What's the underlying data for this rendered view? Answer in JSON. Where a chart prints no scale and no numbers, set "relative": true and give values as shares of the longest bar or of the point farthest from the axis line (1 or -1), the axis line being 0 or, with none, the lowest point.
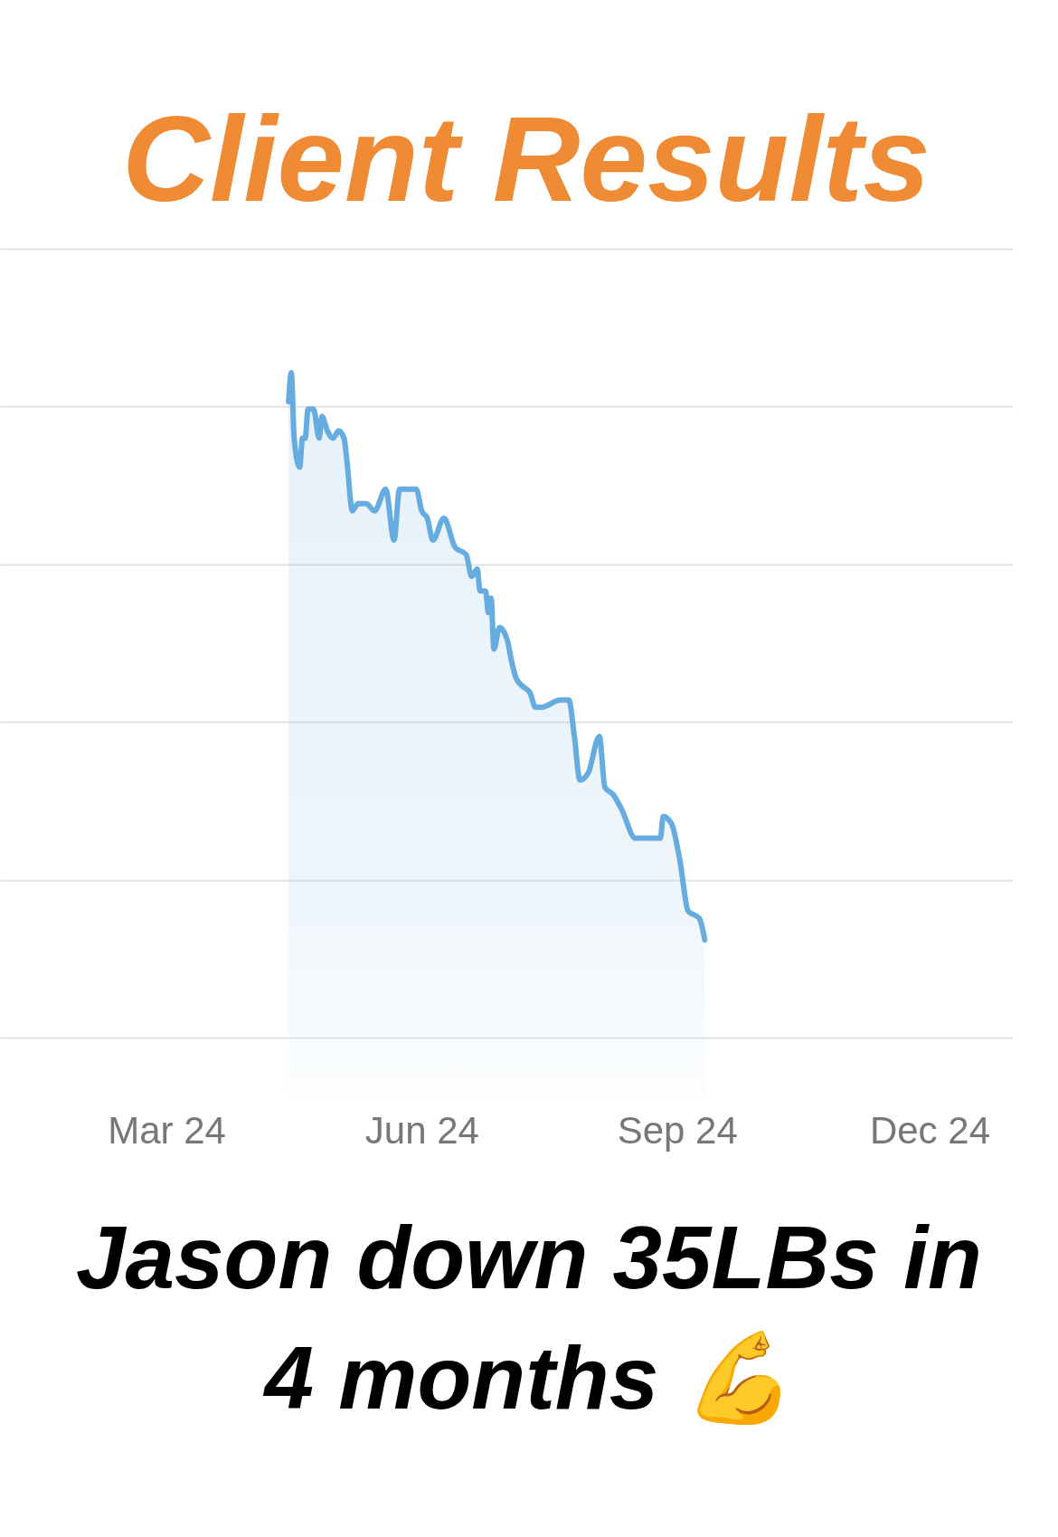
{
  "chart_data": {
    "type": "area",
    "relative": true,
    "title": "Client Results",
    "annotations": [
      "Jason down 35LBs in 4 months 💪"
    ],
    "x": [
      "2024-04-14",
      "2024-04-15",
      "2024-04-16",
      "2024-04-18",
      "2024-04-19",
      "2024-04-20",
      "2024-04-21",
      "2024-04-23",
      "2024-04-25",
      "2024-04-26",
      "2024-04-28",
      "2024-04-30",
      "2024-05-02",
      "2024-05-04",
      "2024-05-05",
      "2024-05-07",
      "2024-05-09",
      "2024-05-12",
      "2024-05-15",
      "2024-05-19",
      "2024-05-22",
      "2024-05-24",
      "2024-05-30",
      "2024-06-01",
      "2024-06-03",
      "2024-06-05",
      "2024-06-09",
      "2024-06-13",
      "2024-06-17",
      "2024-06-19",
      "2024-06-21",
      "2024-06-22",
      "2024-06-24",
      "2024-06-25",
      "2024-06-26",
      "2024-06-27",
      "2024-06-29",
      "2024-07-02",
      "2024-07-03",
      "2024-07-05",
      "2024-07-07",
      "2024-07-10",
      "2024-07-12",
      "2024-07-14",
      "2024-07-21",
      "2024-07-24",
      "2024-07-26",
      "2024-07-28",
      "2024-07-31",
      "2024-08-04",
      "2024-08-06",
      "2024-08-09",
      "2024-08-12",
      "2024-08-17",
      "2024-08-26",
      "2024-08-27",
      "2024-08-30",
      "2024-09-02",
      "2024-09-05",
      "2024-09-09",
      "2024-09-11"
    ],
    "series": [
      {
        "color": "#67ace0",
        "values": [
          0.96,
          1.0,
          0.91,
          0.87,
          0.91,
          0.91,
          0.95,
          0.95,
          0.91,
          0.94,
          0.92,
          0.91,
          0.92,
          0.91,
          0.88,
          0.81,
          0.82,
          0.82,
          0.81,
          0.84,
          0.77,
          0.84,
          0.84,
          0.81,
          0.8,
          0.77,
          0.8,
          0.76,
          0.75,
          0.72,
          0.73,
          0.7,
          0.7,
          0.67,
          0.69,
          0.62,
          0.65,
          0.63,
          0.61,
          0.58,
          0.57,
          0.56,
          0.54,
          0.54,
          0.55,
          0.55,
          0.5,
          0.44,
          0.45,
          0.5,
          0.43,
          0.42,
          0.4,
          0.36,
          0.36,
          0.39,
          0.38,
          0.33,
          0.26,
          0.25,
          0.22
        ]
      }
    ],
    "xlim": [
      "2024-01-01",
      "2024-12-31"
    ],
    "xticks": [
      {
        "value": "2024-03-01",
        "label": "Mar 24"
      },
      {
        "value": "2024-06-01",
        "label": "Jun 24"
      },
      {
        "value": "2024-09-01",
        "label": "Sep 24"
      },
      {
        "value": "2024-12-01",
        "label": "Dec 24"
      }
    ],
    "grid": "y"
  }
}
